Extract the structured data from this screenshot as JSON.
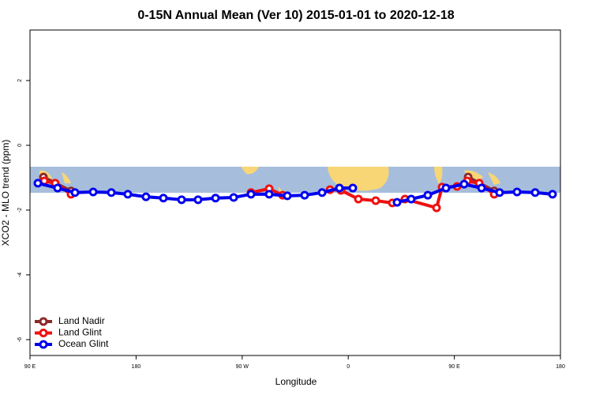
{
  "chart_data": {
    "type": "line",
    "title": "0-15N Annual Mean (Ver 10)   2015-01-01 to 2020-12-18",
    "x_label": "Longitude",
    "y_label": "XCO2 - MLO trend (ppm)",
    "xlim": [
      90,
      540
    ],
    "ylim": [
      -6.49,
      3.56
    ],
    "xticks": [
      {
        "value": 90,
        "label": "90 E"
      },
      {
        "value": 180,
        "label": "180"
      },
      {
        "value": 270,
        "label": "90 W"
      },
      {
        "value": 360,
        "label": "0"
      },
      {
        "value": 450,
        "label": "90 E"
      },
      {
        "value": 540,
        "label": "180"
      }
    ],
    "yticks": [
      -6,
      -4,
      -2,
      0,
      2
    ],
    "legend": "bottom-left",
    "series": [
      {
        "name": "Land Nadir",
        "color": "#8b2a2a",
        "x": [
          101.4,
          124.8,
          null,
          461.7,
          483.8
        ],
        "values": [
          -0.98,
          -1.41,
          null,
          -0.98,
          -1.41
        ]
      },
      {
        "name": "Land Glint",
        "color": "#ee1111",
        "x": [
          102.1,
          111.4,
          124.8,
          null,
          277.5,
          292.9,
          304.3,
          null,
          344.5,
          353.8,
          368.6,
          383.3,
          397.4,
          408.1,
          434.9,
          439.6,
          452.3,
          461.0,
          471.1,
          483.8
        ],
        "values": [
          -1.1,
          -1.17,
          -1.51,
          null,
          -1.46,
          -1.34,
          -1.54,
          null,
          -1.37,
          -1.39,
          -1.66,
          -1.71,
          -1.78,
          -1.66,
          -1.93,
          -1.29,
          -1.27,
          -1.1,
          -1.17,
          -1.51
        ]
      },
      {
        "name": "Ocean Glint",
        "color": "#0000ee",
        "x": [
          96.7,
          113.4,
          128.2,
          143.6,
          159.0,
          173.0,
          188.4,
          203.2,
          218.6,
          232.6,
          247.4,
          262.8,
          277.5,
          292.9,
          308.3,
          323.0,
          337.8,
          352.5,
          363.9,
          null,
          401.4,
          413.4,
          427.5,
          442.9,
          458.3,
          473.1,
          488.4,
          503.2,
          518.6,
          533.3
        ],
        "values": [
          -1.17,
          -1.32,
          -1.46,
          -1.44,
          -1.46,
          -1.51,
          -1.59,
          -1.63,
          -1.68,
          -1.68,
          -1.63,
          -1.61,
          -1.51,
          -1.51,
          -1.56,
          -1.54,
          -1.46,
          -1.32,
          -1.32,
          null,
          -1.76,
          -1.66,
          -1.54,
          -1.32,
          -1.2,
          -1.32,
          -1.46,
          -1.44,
          -1.46,
          -1.51
        ]
      }
    ]
  }
}
